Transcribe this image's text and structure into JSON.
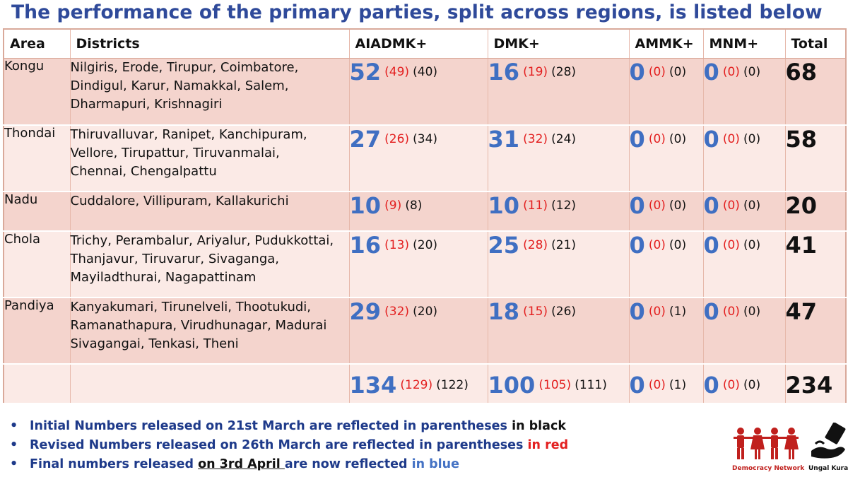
{
  "title": "The performance of the primary parties, split across regions, is listed below",
  "headers": {
    "area": "Area",
    "districts": "Districts",
    "aiadmk": "AIADMK+",
    "dmk": "DMK+",
    "ammk": "AMMK+",
    "mnm": "MNM+",
    "total": "Total"
  },
  "rows": [
    {
      "area": "Kongu",
      "districts": [
        "Nilgiris, Erode, Tirupur, Coimbatore,",
        "Dindigul, Karur, Namakkal, Salem,",
        "Dharmapuri, Krishnagiri"
      ],
      "aiadmk": {
        "final": "52",
        "revised": "(49)",
        "initial": "(40)"
      },
      "dmk": {
        "final": "16",
        "revised": "(19)",
        "initial": "(28)"
      },
      "ammk": {
        "final": "0",
        "revised": "(0)",
        "initial": "(0)"
      },
      "mnm": {
        "final": "0",
        "revised": "(0)",
        "initial": "(0)"
      },
      "total": "68"
    },
    {
      "area": "Thondai",
      "districts": [
        "Thiruvalluvar, Ranipet, Kanchipuram,",
        "Vellore, Tirupattur, Tiruvanmalai,",
        "Chennai, Chengalpattu"
      ],
      "aiadmk": {
        "final": "27",
        "revised": "(26)",
        "initial": "(34)"
      },
      "dmk": {
        "final": "31",
        "revised": "(32)",
        "initial": "(24)"
      },
      "ammk": {
        "final": "0",
        "revised": "(0)",
        "initial": "(0)"
      },
      "mnm": {
        "final": "0",
        "revised": "(0)",
        "initial": "(0)"
      },
      "total": "58"
    },
    {
      "area": "Nadu",
      "districts": [
        "Cuddalore, Villipuram, Kallakurichi"
      ],
      "aiadmk": {
        "final": "10",
        "revised": "(9)",
        "initial": "(8)"
      },
      "dmk": {
        "final": "10",
        "revised": "(11)",
        "initial": "(12)"
      },
      "ammk": {
        "final": "0",
        "revised": "(0)",
        "initial": "(0)"
      },
      "mnm": {
        "final": "0",
        "revised": "(0)",
        "initial": "(0)"
      },
      "total": "20"
    },
    {
      "area": "Chola",
      "districts": [
        "Trichy, Perambalur, Ariyalur, Pudukkottai,",
        "Thanjavur, Tiruvarur, Sivaganga,",
        "Mayiladthurai, Nagapattinam"
      ],
      "aiadmk": {
        "final": "16",
        "revised": "(13)",
        "initial": "(20)"
      },
      "dmk": {
        "final": "25",
        "revised": "(28)",
        "initial": "(21)"
      },
      "ammk": {
        "final": "0",
        "revised": "(0)",
        "initial": "(0)"
      },
      "mnm": {
        "final": "0",
        "revised": "(0)",
        "initial": "(0)"
      },
      "total": "41"
    },
    {
      "area": "Pandiya",
      "districts": [
        "Kanyakumari, Tirunelveli, Thootukudi,",
        "Ramanathapura, Virudhunagar, Madurai",
        "Sivagangai, Tenkasi, Theni"
      ],
      "aiadmk": {
        "final": "29",
        "revised": "(32)",
        "initial": "(20)"
      },
      "dmk": {
        "final": "18",
        "revised": "(15)",
        "initial": "(26)"
      },
      "ammk": {
        "final": "0",
        "revised": "(0)",
        "initial": "(1)"
      },
      "mnm": {
        "final": "0",
        "revised": "(0)",
        "initial": "(0)"
      },
      "total": "47"
    }
  ],
  "totals": {
    "aiadmk": {
      "final": "134",
      "revised": "(129)",
      "initial": "(122)"
    },
    "dmk": {
      "final": "100",
      "revised": "(105)",
      "initial": "(111)"
    },
    "ammk": {
      "final": "0",
      "revised": "(0)",
      "initial": "(1)"
    },
    "mnm": {
      "final": "0",
      "revised": "(0)",
      "initial": "(0)"
    },
    "total": "234"
  },
  "notes": [
    {
      "bullet": "•",
      "parts": [
        "Initial Numbers released on 21st March are reflected in parentheses",
        " in black"
      ]
    },
    {
      "bullet": "•",
      "parts": [
        "Revised Numbers released on 26th March are reflected in parentheses",
        " in red"
      ]
    },
    {
      "bullet": "•",
      "parts": [
        "Final numbers released ",
        "on 3rd April ",
        "are now reflected",
        " in blue"
      ]
    }
  ],
  "logos": {
    "democracy_network": "Democracy Network",
    "ungal_kural": "Ungal Kural"
  },
  "colors": {
    "title": "#2f4a9a",
    "final_blue": "#3f6fc2",
    "revised_red": "#e32020",
    "row_dark": "#f4d4cd",
    "row_light": "#fbeae6"
  }
}
